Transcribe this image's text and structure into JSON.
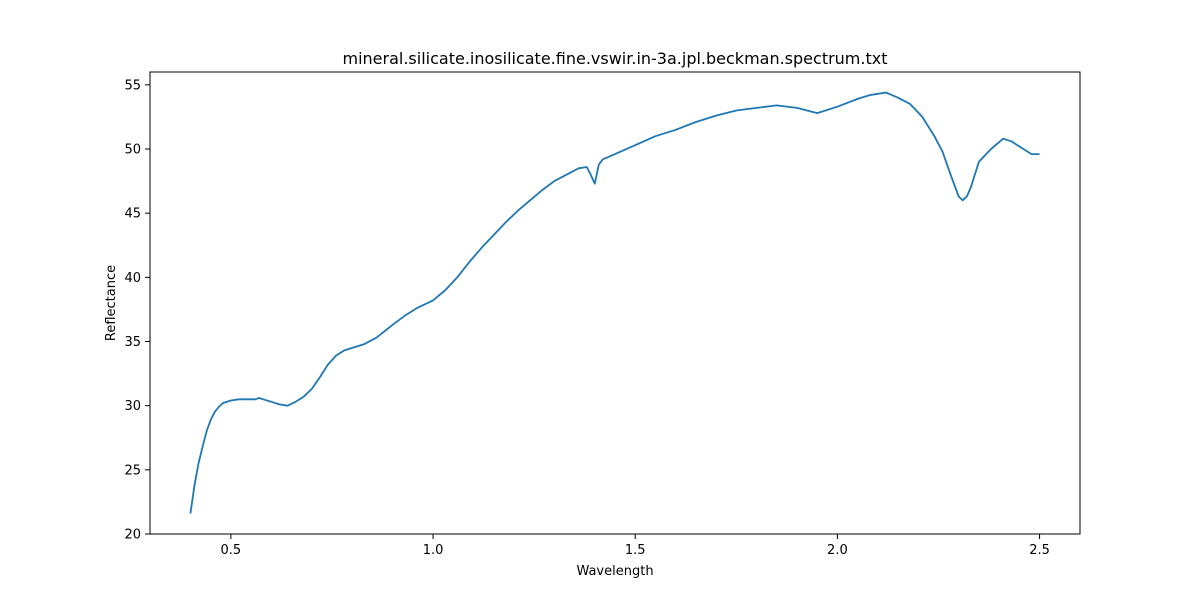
{
  "chart_data": {
    "type": "line",
    "title": "mineral.silicate.inosilicate.fine.vswir.in-3a.jpl.beckman.spectrum.txt",
    "xlabel": "Wavelength",
    "ylabel": "Reflectance",
    "xlim": [
      0.3,
      2.6
    ],
    "ylim": [
      20,
      56
    ],
    "xticks": [
      0.5,
      1.0,
      1.5,
      2.0,
      2.5
    ],
    "xtick_labels": [
      "0.5",
      "1.0",
      "1.5",
      "2.0",
      "2.5"
    ],
    "yticks": [
      20,
      25,
      30,
      35,
      40,
      45,
      50,
      55
    ],
    "ytick_labels": [
      "20",
      "25",
      "30",
      "35",
      "40",
      "45",
      "50",
      "55"
    ],
    "grid": false,
    "legend": "none",
    "series": [
      {
        "color": "#1f77b4",
        "x": [
          0.4,
          0.41,
          0.42,
          0.43,
          0.44,
          0.45,
          0.46,
          0.47,
          0.48,
          0.5,
          0.52,
          0.54,
          0.56,
          0.57,
          0.58,
          0.6,
          0.62,
          0.64,
          0.66,
          0.68,
          0.7,
          0.72,
          0.74,
          0.76,
          0.78,
          0.8,
          0.83,
          0.86,
          0.9,
          0.93,
          0.96,
          1.0,
          1.03,
          1.06,
          1.09,
          1.12,
          1.15,
          1.18,
          1.21,
          1.24,
          1.27,
          1.3,
          1.33,
          1.36,
          1.38,
          1.39,
          1.4,
          1.41,
          1.42,
          1.45,
          1.5,
          1.55,
          1.6,
          1.65,
          1.7,
          1.75,
          1.8,
          1.85,
          1.9,
          1.95,
          2.0,
          2.05,
          2.08,
          2.1,
          2.12,
          2.15,
          2.18,
          2.21,
          2.24,
          2.26,
          2.28,
          2.3,
          2.31,
          2.32,
          2.33,
          2.35,
          2.38,
          2.41,
          2.43,
          2.46,
          2.48,
          2.5
        ],
        "y": [
          21.6,
          23.8,
          25.5,
          26.8,
          28.0,
          28.9,
          29.5,
          29.9,
          30.2,
          30.4,
          30.5,
          30.5,
          30.5,
          30.6,
          30.5,
          30.3,
          30.1,
          30.0,
          30.3,
          30.7,
          31.3,
          32.2,
          33.2,
          33.9,
          34.3,
          34.5,
          34.8,
          35.3,
          36.3,
          37.0,
          37.6,
          38.2,
          39.0,
          40.0,
          41.2,
          42.3,
          43.3,
          44.3,
          45.2,
          46.0,
          46.8,
          47.5,
          48.0,
          48.5,
          48.6,
          48.0,
          47.3,
          48.8,
          49.2,
          49.6,
          50.3,
          51.0,
          51.5,
          52.1,
          52.6,
          53.0,
          53.2,
          53.4,
          53.2,
          52.8,
          53.3,
          53.9,
          54.2,
          54.3,
          54.4,
          54.0,
          53.5,
          52.5,
          51.0,
          49.8,
          48.0,
          46.3,
          46.0,
          46.3,
          47.0,
          49.0,
          50.0,
          50.8,
          50.6,
          50.0,
          49.6,
          49.6
        ]
      }
    ]
  }
}
